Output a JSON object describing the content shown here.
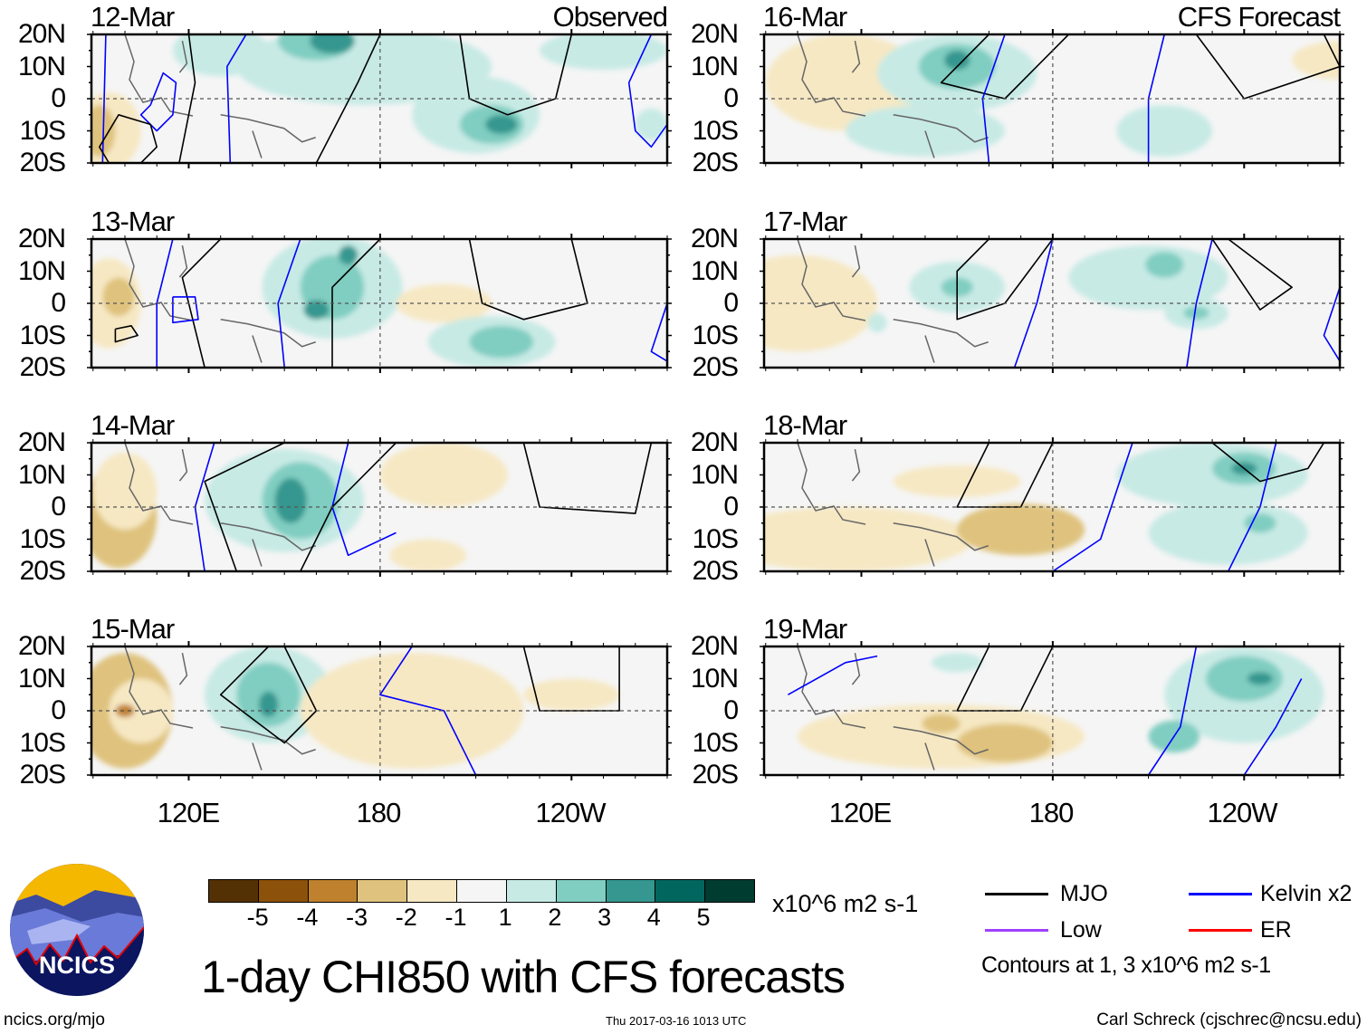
{
  "panels": [
    {
      "id": "p12",
      "date": "12-Mar",
      "tag": "Observed",
      "column": "left",
      "row": 0
    },
    {
      "id": "p13",
      "date": "13-Mar",
      "tag": "",
      "column": "left",
      "row": 1
    },
    {
      "id": "p14",
      "date": "14-Mar",
      "tag": "",
      "column": "left",
      "row": 2
    },
    {
      "id": "p15",
      "date": "15-Mar",
      "tag": "",
      "column": "left",
      "row": 3
    },
    {
      "id": "p16",
      "date": "16-Mar",
      "tag": "CFS Forecast",
      "column": "right",
      "row": 0
    },
    {
      "id": "p17",
      "date": "17-Mar",
      "tag": "",
      "column": "right",
      "row": 1
    },
    {
      "id": "p18",
      "date": "18-Mar",
      "tag": "",
      "column": "right",
      "row": 2
    },
    {
      "id": "p19",
      "date": "19-Mar",
      "tag": "",
      "column": "right",
      "row": 3
    }
  ],
  "lat_labels": [
    "20N",
    "10N",
    "0",
    "10S",
    "20S"
  ],
  "lon_labels": [
    "120E",
    "180",
    "120W"
  ],
  "colorbar": {
    "colors": [
      "#543005",
      "#8c510a",
      "#bf812d",
      "#dfc27d",
      "#f6e8c3",
      "#f5f5f5",
      "#c7eae5",
      "#80cdc1",
      "#35978f",
      "#01665e",
      "#003c30"
    ],
    "ticks": [
      "-5",
      "-4",
      "-3",
      "-2",
      "-1",
      "1",
      "2",
      "3",
      "4",
      "5"
    ],
    "units": "x10^6 m2 s-1"
  },
  "title": "1-day CHI850 with CFS forecasts",
  "legend": {
    "items": [
      {
        "label": "MJO",
        "color": "#000000"
      },
      {
        "label": "Kelvin x2",
        "color": "#0000ff"
      },
      {
        "label": "Low",
        "color": "#a040ff"
      },
      {
        "label": "ER",
        "color": "#ff0000"
      }
    ],
    "contours_note": "Contours at 1, 3 x10^6 m2 s-1"
  },
  "logo": {
    "text": "NCICS"
  },
  "footer": {
    "url": "ncics.org/mjo",
    "timestamp": "Thu 2017-03-16 1013 UTC",
    "credit": "Carl Schreck (cjschrec@ncsu.edu)"
  }
}
